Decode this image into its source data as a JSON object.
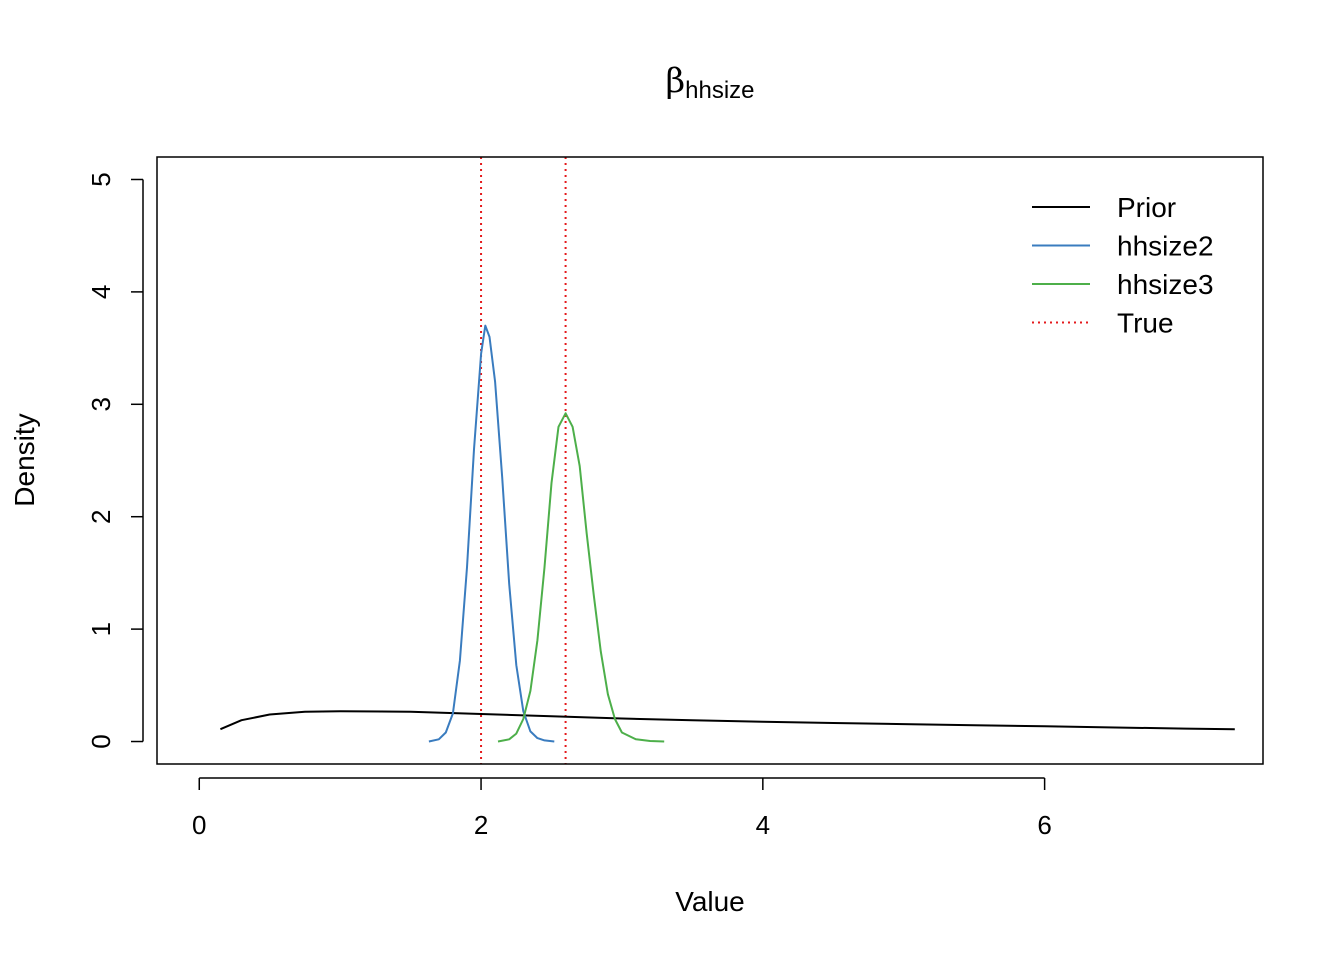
{
  "chart_data": {
    "type": "line",
    "title": {
      "symbol": "β",
      "subscript": "hhsize"
    },
    "xlabel": "Value",
    "ylabel": "Density",
    "xlim": [
      -0.3,
      7.55
    ],
    "ylim": [
      -0.2,
      5.2
    ],
    "x_ticks": [
      0,
      2,
      4,
      6
    ],
    "y_ticks": [
      0,
      1,
      2,
      3,
      4,
      5
    ],
    "legend_position": "top-right",
    "series": [
      {
        "name": "Prior",
        "color": "#000000",
        "style": "solid",
        "x": [
          0.15,
          0.3,
          0.5,
          0.75,
          1.0,
          1.5,
          2.0,
          2.5,
          3.0,
          3.5,
          4.0,
          4.5,
          5.0,
          5.5,
          6.0,
          6.5,
          7.0,
          7.35
        ],
        "y": [
          0.11,
          0.19,
          0.24,
          0.265,
          0.27,
          0.265,
          0.245,
          0.225,
          0.205,
          0.19,
          0.175,
          0.165,
          0.155,
          0.145,
          0.135,
          0.125,
          0.115,
          0.11
        ]
      },
      {
        "name": "hhsize2",
        "color": "#3a7cbf",
        "style": "solid",
        "x": [
          1.63,
          1.7,
          1.75,
          1.8,
          1.85,
          1.9,
          1.95,
          2.0,
          2.03,
          2.06,
          2.1,
          2.15,
          2.2,
          2.25,
          2.3,
          2.35,
          2.4,
          2.45,
          2.52
        ],
        "y": [
          0.0,
          0.02,
          0.08,
          0.25,
          0.72,
          1.55,
          2.6,
          3.45,
          3.7,
          3.6,
          3.2,
          2.35,
          1.4,
          0.68,
          0.27,
          0.09,
          0.03,
          0.01,
          0.0
        ]
      },
      {
        "name": "hhsize3",
        "color": "#4daf4a",
        "style": "solid",
        "x": [
          2.12,
          2.2,
          2.25,
          2.3,
          2.35,
          2.4,
          2.45,
          2.5,
          2.55,
          2.6,
          2.65,
          2.7,
          2.75,
          2.8,
          2.85,
          2.9,
          2.95,
          3.0,
          3.1,
          3.2,
          3.3
        ],
        "y": [
          0.0,
          0.02,
          0.07,
          0.2,
          0.45,
          0.9,
          1.55,
          2.3,
          2.8,
          2.92,
          2.8,
          2.45,
          1.85,
          1.3,
          0.8,
          0.42,
          0.2,
          0.08,
          0.02,
          0.005,
          0.0
        ]
      }
    ],
    "reference_lines": {
      "name": "True",
      "color": "#e41a1c",
      "style": "dotted",
      "x": [
        2.0,
        2.6
      ]
    },
    "legend": [
      {
        "label": "Prior",
        "color": "#000000",
        "style": "solid"
      },
      {
        "label": "hhsize2",
        "color": "#3a7cbf",
        "style": "solid"
      },
      {
        "label": "hhsize3",
        "color": "#4daf4a",
        "style": "solid"
      },
      {
        "label": "True",
        "color": "#e41a1c",
        "style": "dotted"
      }
    ]
  }
}
